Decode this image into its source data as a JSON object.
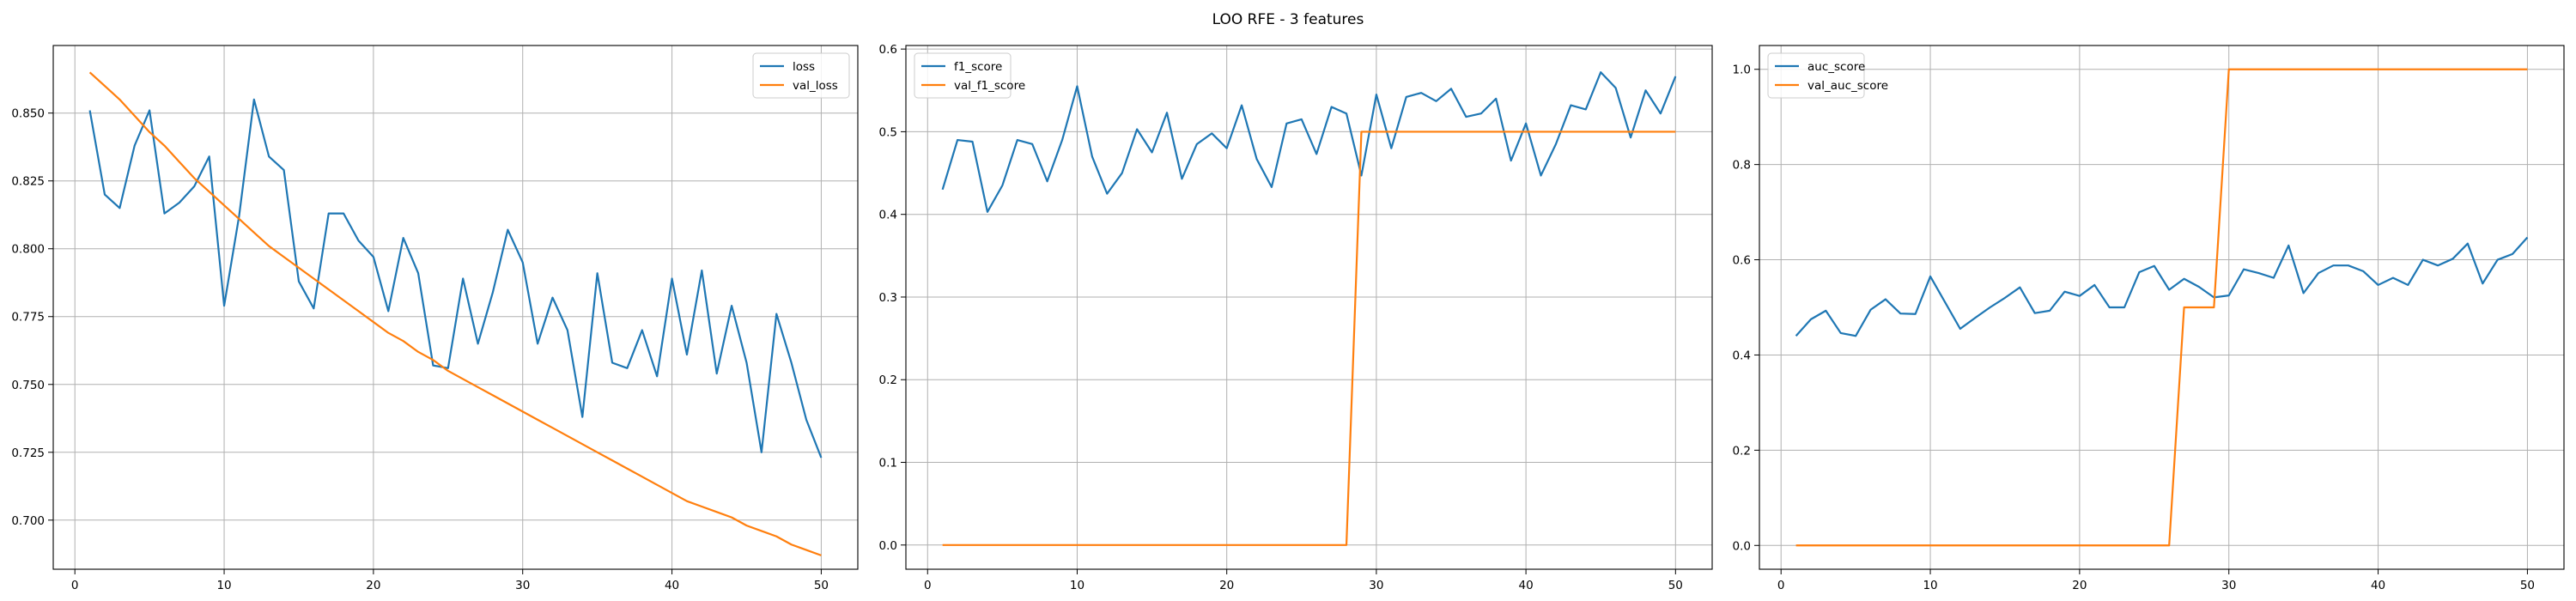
{
  "figure": {
    "suptitle": "LOO RFE - 3 features"
  },
  "colors": {
    "train": "#1f77b4",
    "val": "#ff7f0e",
    "grid": "#b0b0b0"
  },
  "chart_data": [
    {
      "type": "line",
      "title": "",
      "xlabel": "",
      "ylabel": "",
      "xlim": [
        -1.45,
        52.45
      ],
      "ylim": [
        0.6819,
        0.8749
      ],
      "xticks": [
        0,
        10,
        20,
        30,
        40,
        50
      ],
      "yticks": [
        0.7,
        0.725,
        0.75,
        0.775,
        0.8,
        0.825,
        0.85
      ],
      "ytick_labels": [
        "0.700",
        "0.725",
        "0.750",
        "0.775",
        "0.800",
        "0.825",
        "0.850"
      ],
      "grid": true,
      "legend_position": "top-right",
      "x": [
        1,
        2,
        3,
        4,
        5,
        6,
        7,
        8,
        9,
        10,
        11,
        12,
        13,
        14,
        15,
        16,
        17,
        18,
        19,
        20,
        21,
        22,
        23,
        24,
        25,
        26,
        27,
        28,
        29,
        30,
        31,
        32,
        33,
        34,
        35,
        36,
        37,
        38,
        39,
        40,
        41,
        42,
        43,
        44,
        45,
        46,
        47,
        48,
        49,
        50
      ],
      "series": [
        {
          "name": "loss",
          "role": "train",
          "values": [
            0.851,
            0.82,
            0.815,
            0.838,
            0.851,
            0.813,
            0.817,
            0.823,
            0.834,
            0.779,
            0.812,
            0.855,
            0.834,
            0.829,
            0.788,
            0.778,
            0.813,
            0.813,
            0.803,
            0.797,
            0.777,
            0.804,
            0.791,
            0.757,
            0.756,
            0.789,
            0.765,
            0.784,
            0.807,
            0.795,
            0.765,
            0.782,
            0.77,
            0.738,
            0.791,
            0.758,
            0.756,
            0.77,
            0.753,
            0.789,
            0.761,
            0.792,
            0.754,
            0.779,
            0.758,
            0.725,
            0.776,
            0.758,
            0.737,
            0.723
          ]
        },
        {
          "name": "val_loss",
          "role": "val",
          "values": [
            0.865,
            0.86,
            0.855,
            0.849,
            0.843,
            0.838,
            0.832,
            0.826,
            0.821,
            0.816,
            0.811,
            0.806,
            0.801,
            0.797,
            0.793,
            0.789,
            0.785,
            0.781,
            0.777,
            0.773,
            0.769,
            0.766,
            0.762,
            0.759,
            0.755,
            0.752,
            0.749,
            0.746,
            0.743,
            0.74,
            0.737,
            0.734,
            0.731,
            0.728,
            0.725,
            0.722,
            0.719,
            0.716,
            0.713,
            0.71,
            0.707,
            0.705,
            0.703,
            0.701,
            0.698,
            0.696,
            0.694,
            0.691,
            0.689,
            0.687
          ]
        }
      ]
    },
    {
      "type": "line",
      "title": "",
      "xlabel": "",
      "ylabel": "",
      "xlim": [
        -1.45,
        52.45
      ],
      "ylim": [
        -0.0293,
        0.6043
      ],
      "xticks": [
        0,
        10,
        20,
        30,
        40,
        50
      ],
      "yticks": [
        0.0,
        0.1,
        0.2,
        0.3,
        0.4,
        0.5,
        0.6
      ],
      "ytick_labels": [
        "0.0",
        "0.1",
        "0.2",
        "0.3",
        "0.4",
        "0.5",
        "0.6"
      ],
      "grid": true,
      "legend_position": "top-left",
      "x": [
        1,
        2,
        3,
        4,
        5,
        6,
        7,
        8,
        9,
        10,
        11,
        12,
        13,
        14,
        15,
        16,
        17,
        18,
        19,
        20,
        21,
        22,
        23,
        24,
        25,
        26,
        27,
        28,
        29,
        30,
        31,
        32,
        33,
        34,
        35,
        36,
        37,
        38,
        39,
        40,
        41,
        42,
        43,
        44,
        45,
        46,
        47,
        48,
        49,
        50
      ],
      "series": [
        {
          "name": "f1_score",
          "role": "train",
          "values": [
            0.43,
            0.49,
            0.488,
            0.403,
            0.435,
            0.49,
            0.485,
            0.44,
            0.49,
            0.555,
            0.47,
            0.425,
            0.45,
            0.503,
            0.475,
            0.523,
            0.443,
            0.485,
            0.498,
            0.48,
            0.532,
            0.467,
            0.433,
            0.51,
            0.515,
            0.473,
            0.53,
            0.522,
            0.447,
            0.545,
            0.48,
            0.542,
            0.547,
            0.537,
            0.552,
            0.518,
            0.522,
            0.54,
            0.465,
            0.51,
            0.447,
            0.485,
            0.532,
            0.527,
            0.572,
            0.553,
            0.493,
            0.55,
            0.522,
            0.567
          ]
        },
        {
          "name": "val_f1_score",
          "role": "val",
          "values": [
            0,
            0,
            0,
            0,
            0,
            0,
            0,
            0,
            0,
            0,
            0,
            0,
            0,
            0,
            0,
            0,
            0,
            0,
            0,
            0,
            0,
            0,
            0,
            0,
            0,
            0,
            0,
            0,
            0.5,
            0.5,
            0.5,
            0.5,
            0.5,
            0.5,
            0.5,
            0.5,
            0.5,
            0.5,
            0.5,
            0.5,
            0.5,
            0.5,
            0.5,
            0.5,
            0.5,
            0.5,
            0.5,
            0.5,
            0.5,
            0.5
          ]
        }
      ]
    },
    {
      "type": "line",
      "title": "",
      "xlabel": "",
      "ylabel": "",
      "xlim": [
        -1.45,
        52.45
      ],
      "ylim": [
        -0.05,
        1.05
      ],
      "xticks": [
        0,
        10,
        20,
        30,
        40,
        50
      ],
      "yticks": [
        0.0,
        0.2,
        0.4,
        0.6,
        0.8,
        1.0
      ],
      "ytick_labels": [
        "0.0",
        "0.2",
        "0.4",
        "0.6",
        "0.8",
        "1.0"
      ],
      "grid": true,
      "legend_position": "top-left",
      "x": [
        1,
        2,
        3,
        4,
        5,
        6,
        7,
        8,
        9,
        10,
        11,
        12,
        13,
        14,
        15,
        16,
        17,
        18,
        19,
        20,
        21,
        22,
        23,
        24,
        25,
        26,
        27,
        28,
        29,
        30,
        31,
        32,
        33,
        34,
        35,
        36,
        37,
        38,
        39,
        40,
        41,
        42,
        43,
        44,
        45,
        46,
        47,
        48,
        49,
        50
      ],
      "series": [
        {
          "name": "auc_score",
          "role": "train",
          "values": [
            0.44,
            0.475,
            0.493,
            0.446,
            0.44,
            0.495,
            0.517,
            0.487,
            0.486,
            0.565,
            0.51,
            0.455,
            0.478,
            0.5,
            0.52,
            0.542,
            0.488,
            0.493,
            0.533,
            0.524,
            0.547,
            0.5,
            0.5,
            0.574,
            0.587,
            0.537,
            0.56,
            0.543,
            0.521,
            0.525,
            0.58,
            0.572,
            0.562,
            0.63,
            0.53,
            0.572,
            0.588,
            0.588,
            0.576,
            0.547,
            0.562,
            0.547,
            0.6,
            0.588,
            0.602,
            0.634,
            0.55,
            0.6,
            0.612,
            0.647
          ]
        },
        {
          "name": "val_auc_score",
          "role": "val",
          "values": [
            0,
            0,
            0,
            0,
            0,
            0,
            0,
            0,
            0,
            0,
            0,
            0,
            0,
            0,
            0,
            0,
            0,
            0,
            0,
            0,
            0,
            0,
            0,
            0,
            0,
            0,
            0.5,
            0.5,
            0.5,
            1,
            1,
            1,
            1,
            1,
            1,
            1,
            1,
            1,
            1,
            1,
            1,
            1,
            1,
            1,
            1,
            1,
            1,
            1,
            1,
            1
          ]
        }
      ]
    }
  ]
}
